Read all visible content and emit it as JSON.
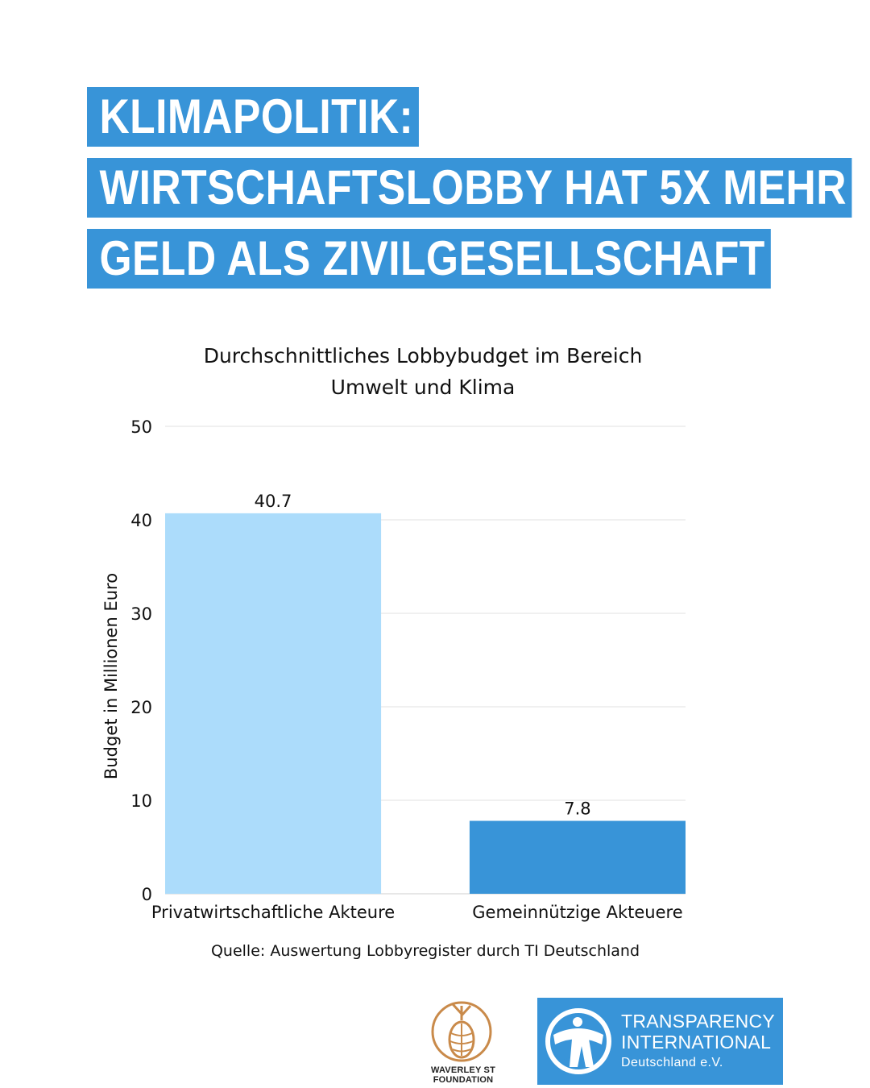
{
  "headline": {
    "line1": "KLIMAPOLITIK:",
    "line2": "WIRTSCHAFTSLOBBY HAT 5X MEHR",
    "line3": "GELD ALS ZIVILGESELLSCHAFT"
  },
  "chart_data": {
    "type": "bar",
    "title": [
      "Durchschnittliches Lobbybudget im Bereich",
      "Umwelt und Klima"
    ],
    "ylabel": "Budget in Millionen Euro",
    "xlabel": "",
    "categories": [
      "Privatwirtschaftliche Akteure",
      "Gemeinnützige Akteuere"
    ],
    "values": [
      40.7,
      7.8
    ],
    "value_labels": [
      "40.7",
      "7.8"
    ],
    "bar_colors": [
      "#acdcfb",
      "#3894d8"
    ],
    "ylim": [
      0,
      50
    ],
    "yticks": [
      0,
      10,
      20,
      30,
      40,
      50
    ],
    "grid": true,
    "source": "Quelle: Auswertung Lobbyregister durch TI Deutschland"
  },
  "logos": {
    "waverley": "WAVERLEY ST FOUNDATION",
    "ti_line1": "TRANSPARENCY",
    "ti_line2": "INTERNATIONAL",
    "ti_line3": "Deutschland e.V.",
    "ti_icon": "transparency-international-globe-icon",
    "waverley_icon": "pine-cone-icon"
  },
  "colors": {
    "accent": "#3894d8",
    "light_bar": "#acdcfb",
    "white": "#ffffff"
  }
}
